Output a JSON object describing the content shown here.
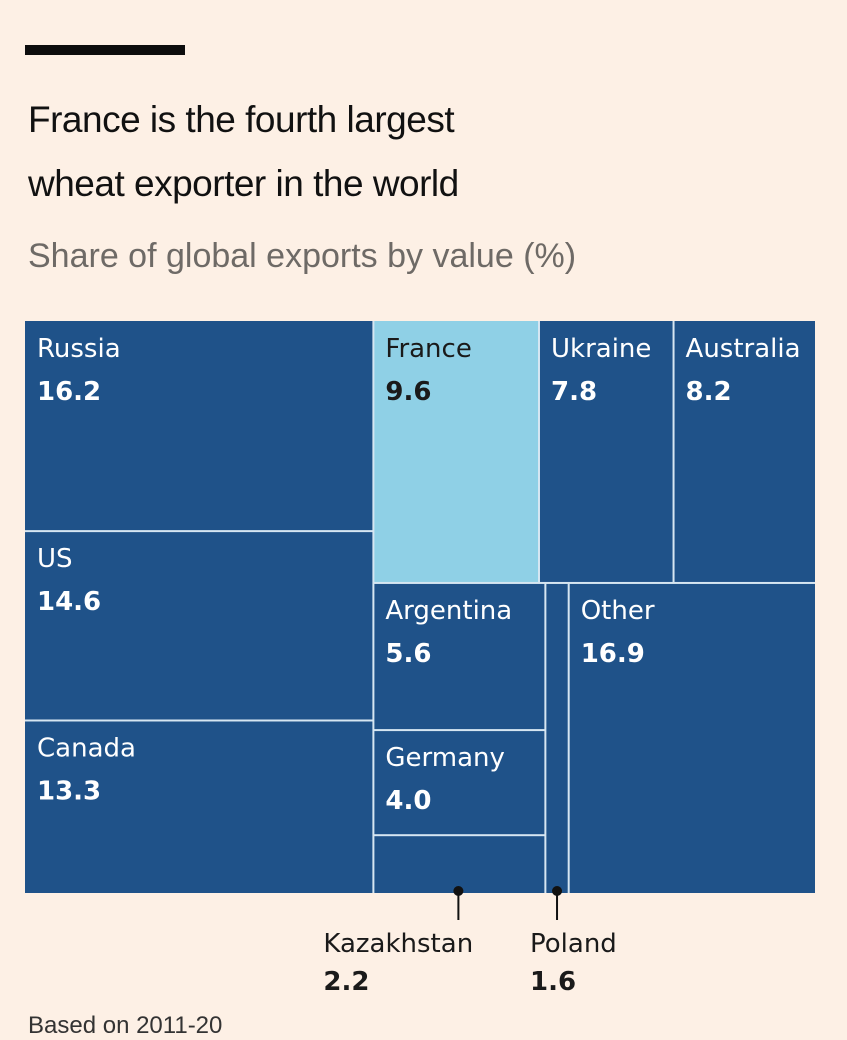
{
  "header": {
    "title_line1": "France is the fourth largest",
    "title_line2": "wheat exporter in the world",
    "subtitle": "Share of global exports by value (%)"
  },
  "colors": {
    "background": "#fdf0e5",
    "tile_default": "#1f5289",
    "tile_highlight": "#8fd0e6",
    "tile_border": "#d6e6f2",
    "text_on_dark": "#ffffff",
    "text_on_light": "#1a1a1a"
  },
  "chart_data": {
    "type": "treemap",
    "title": "France is the fourth largest wheat exporter in the world",
    "subtitle": "Share of global exports by value (%)",
    "unit": "%",
    "highlight": "France",
    "items": [
      {
        "name": "Russia",
        "value": 16.2,
        "display": "16.2"
      },
      {
        "name": "US",
        "value": 14.6,
        "display": "14.6"
      },
      {
        "name": "Canada",
        "value": 13.3,
        "display": "13.3"
      },
      {
        "name": "France",
        "value": 9.6,
        "display": "9.6"
      },
      {
        "name": "Ukraine",
        "value": 7.8,
        "display": "7.8"
      },
      {
        "name": "Australia",
        "value": 8.2,
        "display": "8.2"
      },
      {
        "name": "Argentina",
        "value": 5.6,
        "display": "5.6"
      },
      {
        "name": "Germany",
        "value": 4.0,
        "display": "4.0"
      },
      {
        "name": "Kazakhstan",
        "value": 2.2,
        "display": "2.2",
        "callout": true
      },
      {
        "name": "Poland",
        "value": 1.6,
        "display": "1.6",
        "callout": true
      },
      {
        "name": "Other",
        "value": 16.9,
        "display": "16.9"
      }
    ]
  },
  "footer": {
    "source_partial": "Based on 2011-20"
  }
}
